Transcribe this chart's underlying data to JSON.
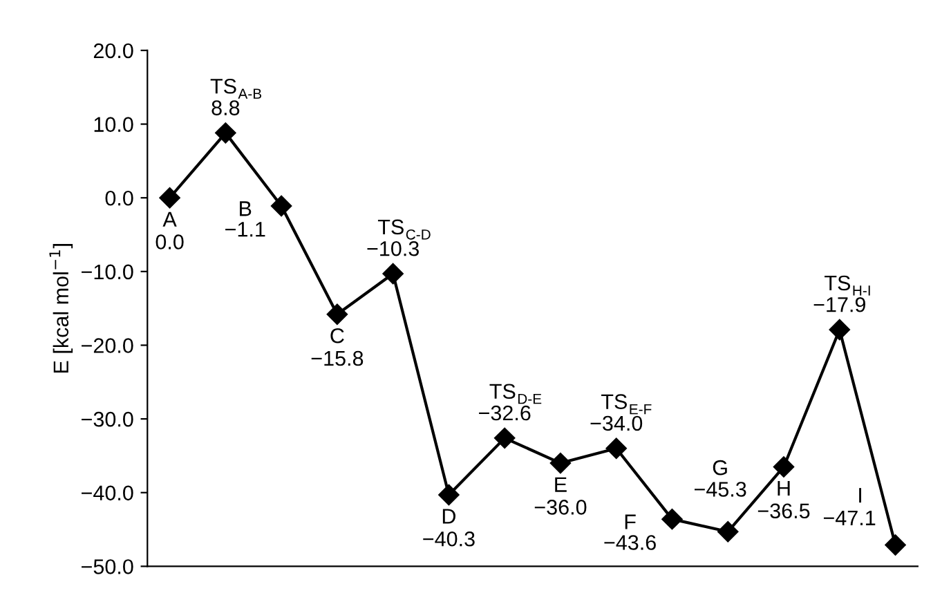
{
  "chart_data": {
    "type": "line",
    "ylabel": "E [kcal mol$^{−1}$]",
    "categories": [
      null,
      null,
      null,
      null,
      null,
      null,
      null,
      null,
      null,
      null,
      null,
      null,
      null,
      null
    ],
    "series": [
      {
        "color": "#000000",
        "values": [
          0.0,
          8.8,
          -1.1,
          -15.8,
          -10.3,
          -40.3,
          -32.6,
          -36.0,
          -34.0,
          -43.6,
          -45.3,
          -36.5,
          -17.9,
          -47.1
        ]
      }
    ],
    "value_labels": [
      "0.0",
      "8.8",
      "−1.1",
      "−15.8",
      "−10.3",
      "−40.3",
      "−32.6",
      "−36.0",
      "−34.0",
      "−43.6",
      "−45.3",
      "−36.5",
      "−17.9",
      "−47.1"
    ],
    "annotations": [
      "A",
      "TS$_{A-B}$",
      "B",
      "C",
      "TS$_{C-D}$",
      "D",
      "TS$_{D-E}$",
      "E",
      "TS$_{E-F}$",
      "F",
      "G",
      "H",
      "TS$_{H-I}$",
      "I"
    ],
    "ylim": [
      -50,
      20
    ],
    "yticks": [
      {
        "value": -50,
        "label": "−50.0"
      },
      {
        "value": -40,
        "label": "−40.0"
      },
      {
        "value": -30,
        "label": "−30.0"
      },
      {
        "value": -20,
        "label": "−20.0"
      },
      {
        "value": -10,
        "label": "−10.0"
      },
      {
        "value": 0,
        "label": "0.0"
      },
      {
        "value": 10,
        "label": "10.0"
      },
      {
        "value": 20,
        "label": "20.0"
      }
    ],
    "tick_labels": "y",
    "grid": false,
    "marker": "diamond",
    "line_style": "solid"
  }
}
